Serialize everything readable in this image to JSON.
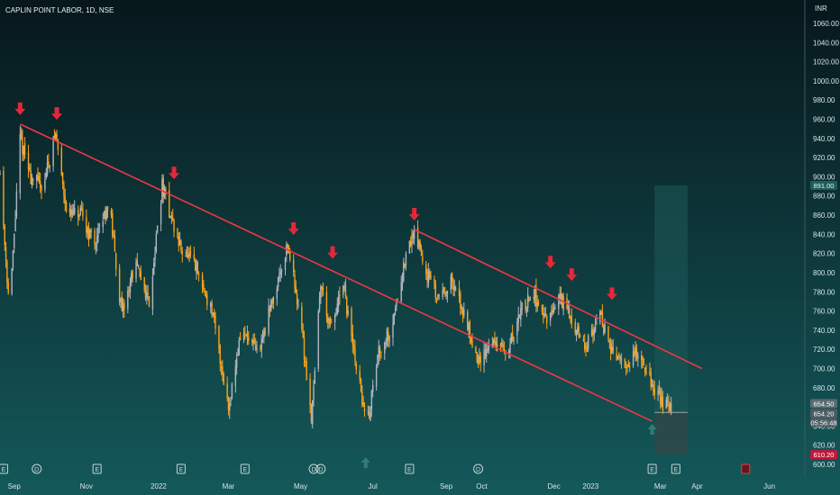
{
  "header": {
    "title": "CAPLIN POINT LABOR, 1D, NSE"
  },
  "axis": {
    "currency": "INR",
    "y_ticks": [
      "1060.00",
      "1040.00",
      "1020.00",
      "1000.00",
      "980.00",
      "960.00",
      "940.00",
      "920.00",
      "900.00",
      "880.00",
      "860.00",
      "840.00",
      "820.00",
      "800.00",
      "780.00",
      "760.00",
      "740.00",
      "720.00",
      "700.00",
      "680.00",
      "640.00",
      "620.00",
      "600.00"
    ],
    "x_ticks": [
      "Sep",
      "Nov",
      "2022",
      "Mar",
      "May",
      "Jul",
      "Sep",
      "Oct",
      "Dec",
      "2023",
      "Mar",
      "Apr",
      "Jun"
    ]
  },
  "badges": {
    "target": "891.00",
    "high": "654.50",
    "last": "654.20",
    "countdown": "05:56:48",
    "stop": "610.20"
  },
  "colors": {
    "background": "#0b2e33",
    "candle_up": "#b2b5be",
    "candle_down": "#f7a31c",
    "trendline": "#f23645",
    "arrow": "#e3283a",
    "target_zone": "#1d5a5a",
    "stop_zone": "#3a4447"
  },
  "event_markers": [
    {
      "label": "E",
      "icon": "earnings-marker"
    },
    {
      "label": "D",
      "icon": "dividend-marker"
    },
    {
      "label": "E",
      "icon": "earnings-marker"
    },
    {
      "label": "E",
      "icon": "earnings-marker"
    },
    {
      "label": "E",
      "icon": "earnings-marker"
    },
    {
      "label": "D",
      "icon": "dividend-marker"
    },
    {
      "label": "D",
      "icon": "dividend-marker"
    },
    {
      "label": "E",
      "icon": "earnings-marker"
    },
    {
      "label": "D",
      "icon": "dividend-marker"
    },
    {
      "label": "E",
      "icon": "earnings-marker"
    },
    {
      "label": "E",
      "icon": "earnings-marker"
    }
  ],
  "chart_data": {
    "type": "candlestick",
    "title": "CAPLIN POINT LABOR, 1D, NSE",
    "ylim": [
      600,
      1060
    ],
    "price_path": [
      {
        "x": "2021-08-20",
        "y": 905
      },
      {
        "x": "2021-08-28",
        "y": 760
      },
      {
        "x": "2021-09-06",
        "y": 940
      },
      {
        "x": "2021-09-15",
        "y": 900
      },
      {
        "x": "2021-09-25",
        "y": 890
      },
      {
        "x": "2021-10-06",
        "y": 945
      },
      {
        "x": "2021-10-16",
        "y": 860
      },
      {
        "x": "2021-10-27",
        "y": 860
      },
      {
        "x": "2021-11-08",
        "y": 830
      },
      {
        "x": "2021-11-20",
        "y": 875
      },
      {
        "x": "2021-12-01",
        "y": 755
      },
      {
        "x": "2021-12-12",
        "y": 810
      },
      {
        "x": "2021-12-24",
        "y": 770
      },
      {
        "x": "2022-01-04",
        "y": 890
      },
      {
        "x": "2022-01-18",
        "y": 830
      },
      {
        "x": "2022-02-01",
        "y": 805
      },
      {
        "x": "2022-02-15",
        "y": 760
      },
      {
        "x": "2022-03-01",
        "y": 660
      },
      {
        "x": "2022-03-12",
        "y": 740
      },
      {
        "x": "2022-03-26",
        "y": 715
      },
      {
        "x": "2022-04-10",
        "y": 785
      },
      {
        "x": "2022-04-20",
        "y": 830
      },
      {
        "x": "2022-04-30",
        "y": 760
      },
      {
        "x": "2022-05-10",
        "y": 650
      },
      {
        "x": "2022-05-18",
        "y": 790
      },
      {
        "x": "2022-05-26",
        "y": 740
      },
      {
        "x": "2022-06-06",
        "y": 785
      },
      {
        "x": "2022-06-16",
        "y": 710
      },
      {
        "x": "2022-06-26",
        "y": 640
      },
      {
        "x": "2022-07-06",
        "y": 720
      },
      {
        "x": "2022-07-16",
        "y": 740
      },
      {
        "x": "2022-07-26",
        "y": 800
      },
      {
        "x": "2022-08-05",
        "y": 845
      },
      {
        "x": "2022-08-14",
        "y": 805
      },
      {
        "x": "2022-08-24",
        "y": 775
      },
      {
        "x": "2022-09-05",
        "y": 790
      },
      {
        "x": "2022-09-17",
        "y": 755
      },
      {
        "x": "2022-09-28",
        "y": 705
      },
      {
        "x": "2022-10-10",
        "y": 730
      },
      {
        "x": "2022-10-22",
        "y": 715
      },
      {
        "x": "2022-11-03",
        "y": 760
      },
      {
        "x": "2022-11-14",
        "y": 780
      },
      {
        "x": "2022-11-25",
        "y": 745
      },
      {
        "x": "2022-12-06",
        "y": 775
      },
      {
        "x": "2022-12-17",
        "y": 750
      },
      {
        "x": "2022-12-28",
        "y": 720
      },
      {
        "x": "2023-01-08",
        "y": 760
      },
      {
        "x": "2023-01-18",
        "y": 720
      },
      {
        "x": "2023-01-30",
        "y": 700
      },
      {
        "x": "2023-02-10",
        "y": 720
      },
      {
        "x": "2023-02-20",
        "y": 690
      },
      {
        "x": "2023-03-02",
        "y": 665
      },
      {
        "x": "2023-03-12",
        "y": 655
      }
    ],
    "trendlines": [
      {
        "from": {
          "x": "2021-09-06",
          "y": 955
        },
        "to": {
          "x": "2023-02-22",
          "y": 645
        }
      },
      {
        "from": {
          "x": "2022-08-05",
          "y": 845
        },
        "to": {
          "x": "2023-04-05",
          "y": 700
        }
      }
    ],
    "peak_arrows": [
      {
        "x": "2021-09-06",
        "y": 955
      },
      {
        "x": "2021-10-07",
        "y": 950
      },
      {
        "x": "2022-01-14",
        "y": 888
      },
      {
        "x": "2022-04-25",
        "y": 830
      },
      {
        "x": "2022-05-28",
        "y": 805
      },
      {
        "x": "2022-08-05",
        "y": 845
      },
      {
        "x": "2022-11-28",
        "y": 795
      },
      {
        "x": "2022-12-16",
        "y": 782
      },
      {
        "x": "2023-01-19",
        "y": 762
      }
    ],
    "position": {
      "start": "2023-02-24",
      "end": "2023-03-24",
      "entry": 654.2,
      "target": 891.0,
      "stop": 610.2
    }
  }
}
